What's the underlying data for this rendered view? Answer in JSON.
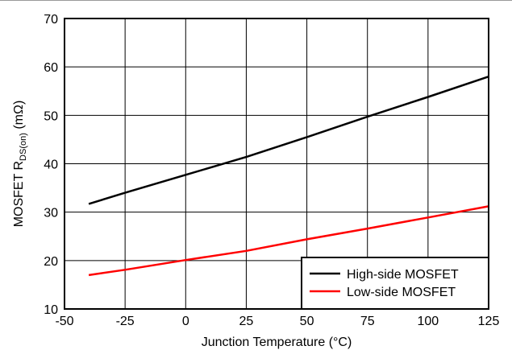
{
  "chart_data": {
    "type": "line",
    "xlabel": "Junction Temperature (°C)",
    "ylabel": {
      "prefix": "MOSFET R",
      "subscript": "DS(on)",
      "suffix": " (mΩ)"
    },
    "xlim": [
      -50,
      125
    ],
    "ylim": [
      10,
      70
    ],
    "x_ticks": [
      -50,
      -25,
      0,
      25,
      50,
      75,
      100,
      125
    ],
    "y_ticks": [
      10,
      20,
      30,
      40,
      50,
      60,
      70
    ],
    "grid": true,
    "legend_position": "bottom-right",
    "series": [
      {
        "name": "High-side MOSFET",
        "color": "#000000",
        "x": [
          -40,
          -25,
          0,
          25,
          50,
          75,
          100,
          125
        ],
        "y": [
          31.7,
          34.0,
          37.7,
          41.4,
          45.5,
          49.7,
          53.8,
          58.0
        ]
      },
      {
        "name": "Low-side MOSFET",
        "color": "#ff0000",
        "x": [
          -40,
          -25,
          0,
          25,
          50,
          75,
          100,
          125
        ],
        "y": [
          17.0,
          18.1,
          20.1,
          22.0,
          24.4,
          26.6,
          28.9,
          31.2
        ]
      }
    ]
  }
}
